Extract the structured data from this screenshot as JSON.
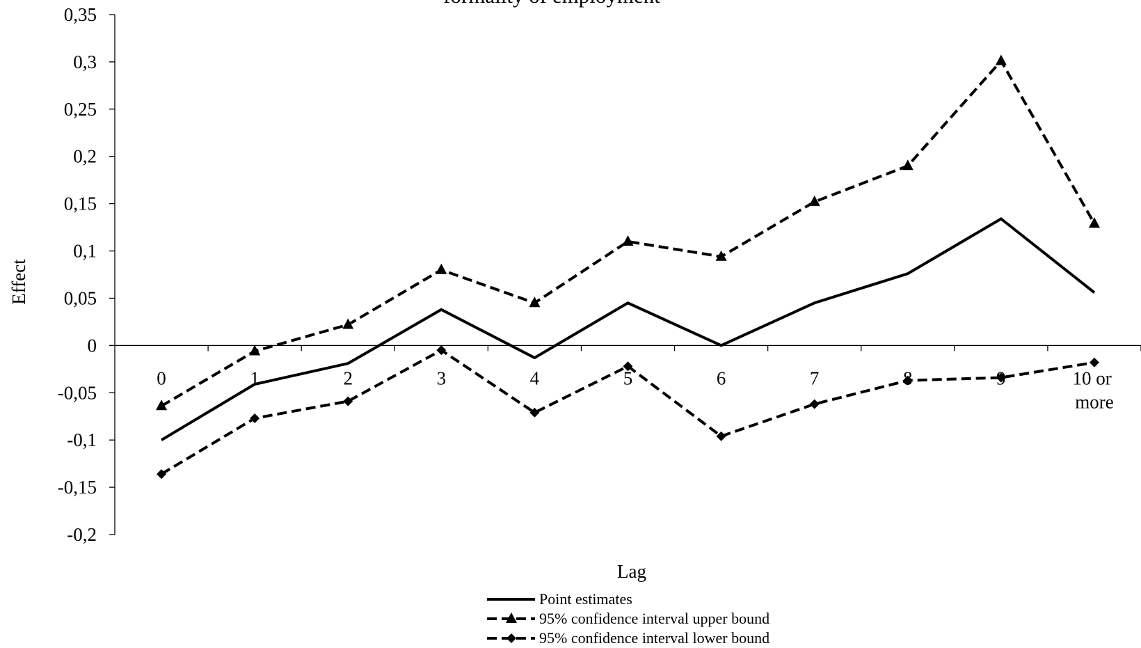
{
  "chart_data": {
    "type": "line",
    "title": "formality of employment",
    "x_label": "Lag",
    "y_label": "Effect",
    "categories": [
      "0",
      "1",
      "2",
      "3",
      "4",
      "5",
      "6",
      "7",
      "8",
      "9",
      "10 or more"
    ],
    "series": [
      {
        "name": "Point estimates",
        "color": "#000000",
        "dash": "solid",
        "marker": "none",
        "values": [
          -0.1,
          -0.041,
          -0.019,
          0.038,
          -0.013,
          0.045,
          0,
          0.045,
          0.076,
          0.134,
          0.056
        ]
      },
      {
        "name": "95% confidence interval upper bound",
        "color": "#000000",
        "dash": "dashed",
        "marker": "triangle",
        "values": [
          -0.064,
          -0.006,
          0.022,
          0.08,
          0.045,
          0.11,
          0.094,
          0.152,
          0.19,
          0.301,
          0.129
        ]
      },
      {
        "name": "95% confidence interval lower bound",
        "color": "#000000",
        "dash": "dashed",
        "marker": "diamond",
        "values": [
          -0.136,
          -0.077,
          -0.059,
          -0.005,
          -0.071,
          -0.022,
          -0.096,
          -0.062,
          -0.037,
          -0.034,
          -0.018
        ]
      }
    ],
    "ylim": [
      -0.2,
      0.35
    ],
    "yticks": [
      {
        "value": -0.2,
        "label": "-0,2"
      },
      {
        "value": -0.15,
        "label": "-0,15"
      },
      {
        "value": -0.1,
        "label": "-0,1"
      },
      {
        "value": -0.05,
        "label": "-0,05"
      },
      0,
      {
        "value": 0.05,
        "label": "0,05"
      },
      {
        "value": 0.1,
        "label": "0,1"
      },
      {
        "value": 0.15,
        "label": "0,15"
      },
      {
        "value": 0.2,
        "label": "0,2"
      },
      {
        "value": 0.25,
        "label": "0,25"
      },
      {
        "value": 0.3,
        "label": "0,3"
      },
      {
        "value": 0.35,
        "label": "0,35"
      }
    ],
    "grid": false,
    "legend": "bottom"
  }
}
